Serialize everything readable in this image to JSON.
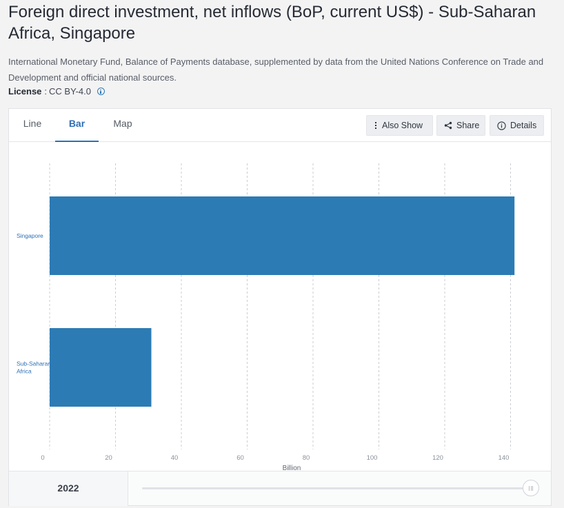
{
  "title": "Foreign direct investment, net inflows (BoP, current US$) - Sub-Saharan Africa, Singapore",
  "source": "International Monetary Fund, Balance of Payments database, supplemented by data from the United Nations Conference on Trade and Development and official national sources.",
  "license": {
    "label": "License",
    "separator": ":",
    "value": "CC BY-4.0"
  },
  "tabs": {
    "line": "Line",
    "bar": "Bar",
    "map": "Map",
    "active": "Bar"
  },
  "toolbar": {
    "also_show": "Also Show",
    "share": "Share",
    "details": "Details"
  },
  "footer": {
    "year": "2022"
  },
  "colors": {
    "bar": "#2c7bb4",
    "accent": "#2c6fb5",
    "tick_label": "#8a9099",
    "category_label": "#2c6fb5"
  },
  "chart_data": {
    "type": "bar",
    "orientation": "horizontal",
    "categories": [
      "Singapore",
      "Sub-Saharan Africa"
    ],
    "category_display": [
      [
        "Singapore"
      ],
      [
        "Sub-Saharan",
        "Africa"
      ]
    ],
    "values": [
      141.2,
      30.9
    ],
    "xlabel": "Billion",
    "ylabel": "",
    "xlim": [
      0,
      140
    ],
    "xticks": [
      0,
      20,
      40,
      60,
      80,
      100,
      120,
      140
    ],
    "grid": "vertical dashed",
    "legend": "none"
  }
}
